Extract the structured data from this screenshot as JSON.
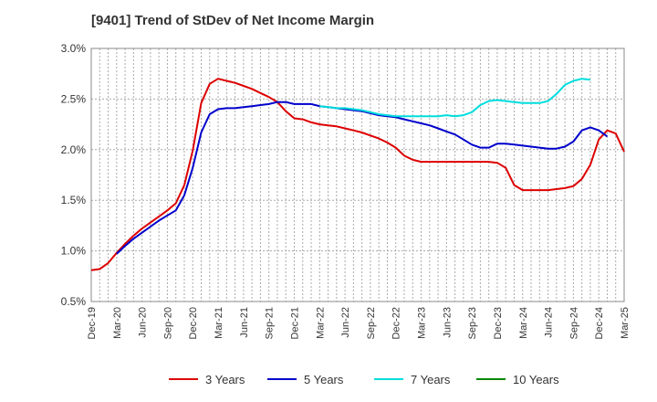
{
  "title": "[9401]  Trend of StDev of Net Income Margin",
  "chart_data": {
    "type": "line",
    "title": "[9401]  Trend of StDev of Net Income Margin",
    "xlabel": "",
    "ylabel": "",
    "ylim": [
      0.5,
      3.0
    ],
    "y_ticks": [
      "0.5%",
      "1.0%",
      "1.5%",
      "2.0%",
      "2.5%",
      "3.0%"
    ],
    "y_tick_values": [
      0.5,
      1.0,
      1.5,
      2.0,
      2.5,
      3.0
    ],
    "x_ticks": [
      "Dec-19",
      "Mar-20",
      "Jun-20",
      "Sep-20",
      "Dec-20",
      "Mar-21",
      "Jun-21",
      "Sep-21",
      "Dec-21",
      "Mar-22",
      "Jun-22",
      "Sep-22",
      "Dec-22",
      "Mar-23",
      "Jun-23",
      "Sep-23",
      "Dec-23",
      "Mar-24",
      "Jun-24",
      "Sep-24",
      "Dec-24",
      "Mar-25"
    ],
    "x_start": "Dec-19",
    "months_count": 63,
    "grid": true,
    "legend_position": "bottom",
    "series": [
      {
        "name": "3 Years",
        "color": "#dd0000",
        "x_start": "Dec-19",
        "values": [
          0.81,
          0.82,
          0.88,
          0.98,
          1.07,
          1.15,
          1.22,
          1.28,
          1.34,
          1.4,
          1.47,
          1.65,
          1.99,
          2.46,
          2.65,
          2.7,
          2.68,
          2.66,
          2.63,
          2.6,
          2.56,
          2.52,
          2.47,
          2.38,
          2.31,
          2.3,
          2.27,
          2.25,
          2.24,
          2.23,
          2.21,
          2.19,
          2.17,
          2.14,
          2.11,
          2.07,
          2.02,
          1.94,
          1.9,
          1.88,
          1.88,
          1.88,
          1.88,
          1.88,
          1.88,
          1.88,
          1.88,
          1.88,
          1.87,
          1.82,
          1.65,
          1.6,
          1.6,
          1.6,
          1.6,
          1.61,
          1.62,
          1.64,
          1.71,
          1.85,
          2.1,
          2.19,
          2.16,
          1.98
        ]
      },
      {
        "name": "5 Years",
        "color": "#0000cc",
        "x_start": "Mar-20",
        "values": [
          0.97,
          1.05,
          1.12,
          1.18,
          1.24,
          1.3,
          1.35,
          1.4,
          1.55,
          1.82,
          2.17,
          2.35,
          2.4,
          2.41,
          2.41,
          2.42,
          2.43,
          2.44,
          2.45,
          2.47,
          2.47,
          2.45,
          2.45,
          2.45,
          2.43,
          2.42,
          2.41,
          2.4,
          2.39,
          2.38,
          2.36,
          2.34,
          2.33,
          2.32,
          2.3,
          2.28,
          2.26,
          2.24,
          2.21,
          2.18,
          2.15,
          2.1,
          2.05,
          2.02,
          2.02,
          2.06,
          2.06,
          2.05,
          2.04,
          2.03,
          2.02,
          2.01,
          2.01,
          2.03,
          2.08,
          2.19,
          2.22,
          2.19,
          2.13
        ]
      },
      {
        "name": "7 Years",
        "color": "#00dddd",
        "x_start": "Mar-22",
        "values": [
          2.43,
          2.42,
          2.41,
          2.41,
          2.4,
          2.39,
          2.37,
          2.35,
          2.34,
          2.33,
          2.33,
          2.33,
          2.33,
          2.33,
          2.33,
          2.34,
          2.33,
          2.34,
          2.37,
          2.44,
          2.48,
          2.49,
          2.48,
          2.47,
          2.46,
          2.46,
          2.46,
          2.48,
          2.55,
          2.64,
          2.68,
          2.7,
          2.69
        ]
      },
      {
        "name": "10 Years",
        "color": "#008800",
        "x_start": "",
        "values": []
      }
    ]
  }
}
